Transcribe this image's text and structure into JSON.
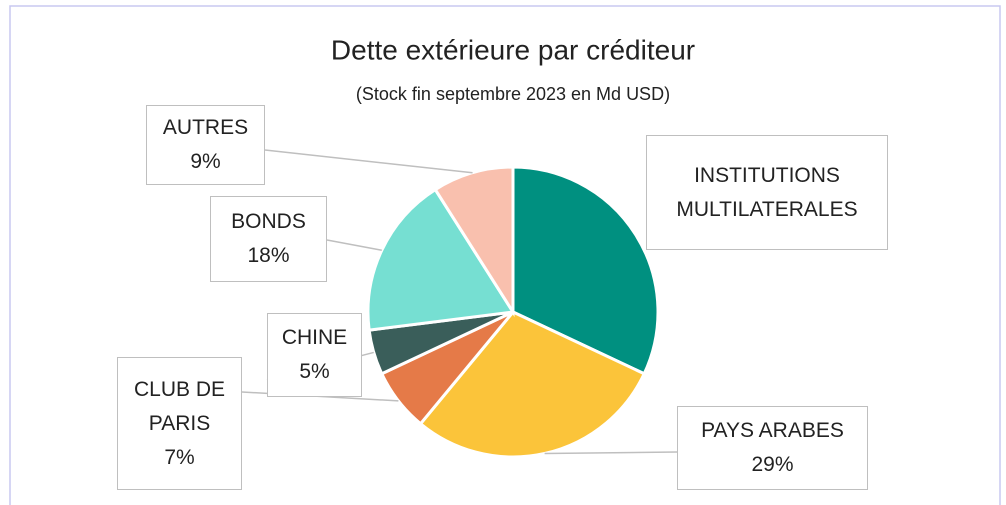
{
  "chart_data": {
    "type": "pie",
    "title": "Dette extérieure par créditeur",
    "subtitle": "(Stock fin septembre 2023 en Md USD)",
    "categories": [
      "INSTITUTIONS MULTILATERALES",
      "PAYS ARABES",
      "CLUB DE PARIS",
      "CHINE",
      "BONDS",
      "AUTRES"
    ],
    "values": [
      32,
      29,
      7,
      5,
      18,
      9
    ],
    "value_labels": [
      null,
      "29%",
      "7%",
      "5%",
      "18%",
      "9%"
    ],
    "colors": [
      "#009080",
      "#fbc43a",
      "#e57a48",
      "#3a5e5a",
      "#76dfd2",
      "#f9c0ae"
    ]
  }
}
